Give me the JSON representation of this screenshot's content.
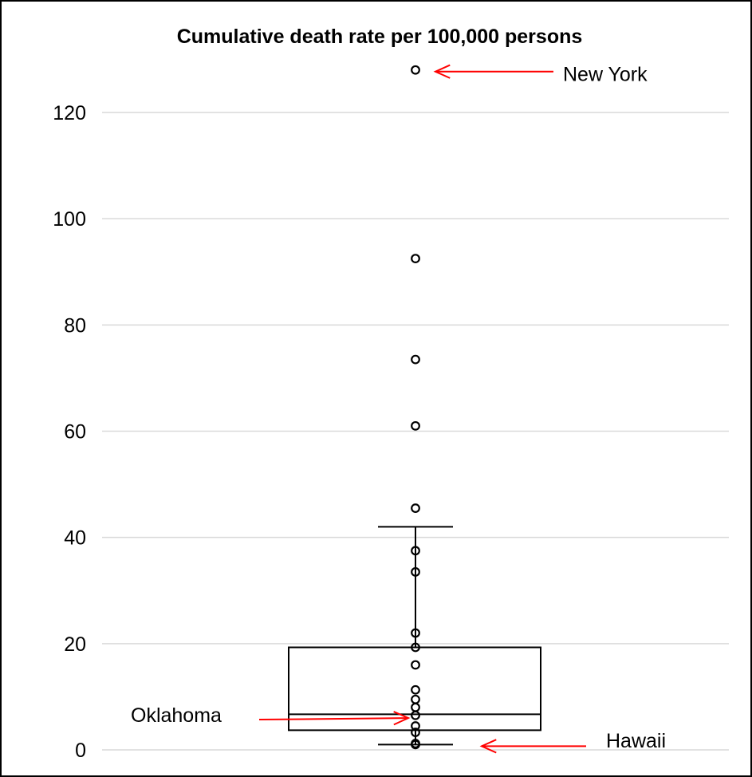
{
  "chart_data": {
    "type": "boxplot",
    "title": "Cumulative death rate per 100,000 persons",
    "xlabel": "",
    "ylabel": "",
    "ylim": [
      0,
      130
    ],
    "yticks": [
      0,
      20,
      40,
      60,
      80,
      100,
      120
    ],
    "grid": true,
    "box": {
      "whisker_low": 1,
      "q1": 3.7,
      "median": 6.7,
      "q3": 19.3,
      "whisker_high": 42
    },
    "points": [
      1,
      1.2,
      3.3,
      4.5,
      6.5,
      8,
      9.5,
      11.3,
      16,
      19.3,
      22,
      33.5,
      37.5,
      45.5,
      61,
      73.5,
      92.5,
      128
    ],
    "annotations": [
      {
        "text": "New York",
        "value": 128
      },
      {
        "text": "Oklahoma",
        "value": 6
      },
      {
        "text": "Hawaii",
        "value": 1
      }
    ],
    "colors": {
      "arrow": "#ff0000",
      "grid": "#d9d9d9"
    }
  }
}
